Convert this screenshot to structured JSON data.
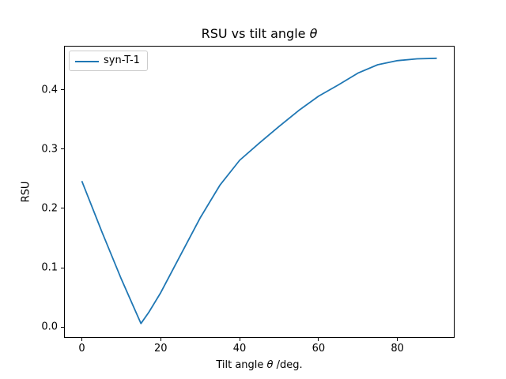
{
  "title": {
    "prefix": "RSU vs tilt angle ",
    "theta": "θ"
  },
  "axes": {
    "xlabel_prefix": "Tilt angle ",
    "xlabel_theta": "θ",
    "xlabel_suffix": " /deg.",
    "ylabel": "RSU"
  },
  "legend": {
    "label": "syn-T-1",
    "line_color": "#1f77b4",
    "border_color": "#cccccc"
  },
  "chart_data": {
    "type": "line",
    "title": "RSU vs tilt angle θ",
    "xlabel": "Tilt angle θ /deg.",
    "ylabel": "RSU",
    "xlim": [
      -4.5,
      94.5
    ],
    "ylim": [
      -0.0184,
      0.474
    ],
    "x_ticks": [
      0,
      20,
      40,
      60,
      80
    ],
    "x_tick_labels": [
      "0",
      "20",
      "40",
      "60",
      "80"
    ],
    "y_ticks": [
      0.0,
      0.1,
      0.2,
      0.3,
      0.4
    ],
    "y_tick_labels": [
      "0.0",
      "0.1",
      "0.2",
      "0.3",
      "0.4"
    ],
    "grid": false,
    "legend_position": "upper left",
    "background": "#ffffff",
    "series": [
      {
        "name": "syn-T-1",
        "color": "#1f77b4",
        "x": [
          0,
          5,
          10,
          13,
          15,
          17,
          20,
          25,
          30,
          35,
          40,
          45,
          50,
          55,
          60,
          65,
          70,
          75,
          80,
          85,
          90
        ],
        "y": [
          0.246,
          0.162,
          0.081,
          0.036,
          0.006,
          0.025,
          0.058,
          0.121,
          0.184,
          0.239,
          0.281,
          0.31,
          0.338,
          0.365,
          0.389,
          0.408,
          0.428,
          0.442,
          0.449,
          0.452,
          0.453
        ]
      }
    ]
  }
}
